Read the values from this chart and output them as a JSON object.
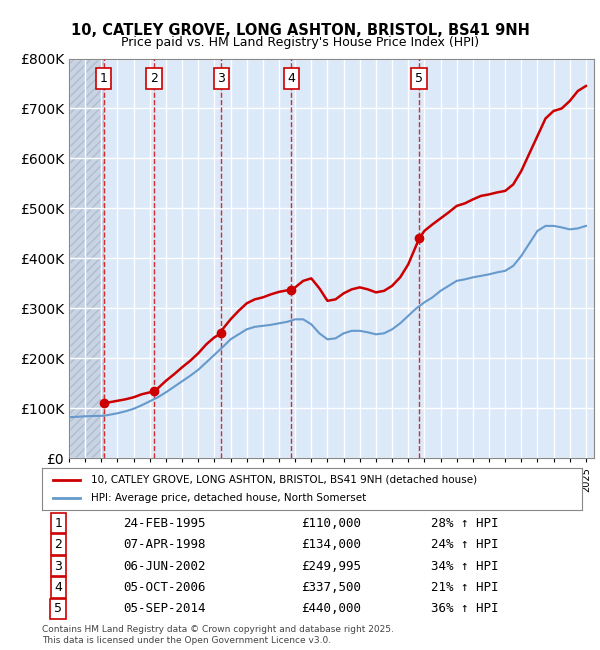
{
  "title": "10, CATLEY GROVE, LONG ASHTON, BRISTOL, BS41 9NH",
  "subtitle": "Price paid vs. HM Land Registry's House Price Index (HPI)",
  "ylabel": "",
  "ylim": [
    0,
    800000
  ],
  "yticks": [
    0,
    100000,
    200000,
    300000,
    400000,
    500000,
    600000,
    700000,
    800000
  ],
  "ytick_labels": [
    "£0",
    "£100K",
    "£200K",
    "£300K",
    "£400K",
    "£500K",
    "£600K",
    "£700K",
    "£800K"
  ],
  "xlim_start": 1993.0,
  "xlim_end": 2025.5,
  "hatch_end": 1995.15,
  "background_color": "#dce9f8",
  "hatch_color": "#c0c8d8",
  "grid_color": "#ffffff",
  "transactions": [
    {
      "num": 1,
      "date": "24-FEB-1995",
      "year": 1995.14,
      "price": 110000,
      "pct": "28%",
      "label": "24-FEB-1995",
      "price_str": "£110,000"
    },
    {
      "num": 2,
      "date": "07-APR-1998",
      "year": 1998.27,
      "price": 134000,
      "pct": "24%",
      "label": "07-APR-1998",
      "price_str": "£134,000"
    },
    {
      "num": 3,
      "date": "06-JUN-2002",
      "year": 2002.43,
      "price": 249995,
      "pct": "34%",
      "label": "06-JUN-2002",
      "price_str": "£249,995"
    },
    {
      "num": 4,
      "date": "05-OCT-2006",
      "year": 2006.76,
      "price": 337500,
      "pct": "21%",
      "label": "05-OCT-2006",
      "price_str": "£337,500"
    },
    {
      "num": 5,
      "date": "05-SEP-2014",
      "year": 2014.68,
      "price": 440000,
      "pct": "36%",
      "label": "05-SEP-2014",
      "price_str": "£440,000"
    }
  ],
  "price_line_color": "#cc0000",
  "hpi_line_color": "#6699cc",
  "legend_label_price": "10, CATLEY GROVE, LONG ASHTON, BRISTOL, BS41 9NH (detached house)",
  "legend_label_hpi": "HPI: Average price, detached house, North Somerset",
  "footer": "Contains HM Land Registry data © Crown copyright and database right 2025.\nThis data is licensed under the Open Government Licence v3.0.",
  "price_data_x": [
    1995.14,
    1995.5,
    1996.0,
    1996.5,
    1997.0,
    1997.5,
    1998.27,
    1998.5,
    1999.0,
    1999.5,
    2000.0,
    2000.5,
    2001.0,
    2001.5,
    2002.0,
    2002.43,
    2002.5,
    2003.0,
    2003.5,
    2004.0,
    2004.5,
    2005.0,
    2005.5,
    2006.0,
    2006.5,
    2006.76,
    2007.0,
    2007.5,
    2008.0,
    2008.5,
    2009.0,
    2009.5,
    2010.0,
    2010.5,
    2011.0,
    2011.5,
    2012.0,
    2012.5,
    2013.0,
    2013.5,
    2014.0,
    2014.68,
    2015.0,
    2015.5,
    2016.0,
    2016.5,
    2017.0,
    2017.5,
    2018.0,
    2018.5,
    2019.0,
    2019.5,
    2020.0,
    2020.5,
    2021.0,
    2021.5,
    2022.0,
    2022.5,
    2023.0,
    2023.5,
    2024.0,
    2024.5,
    2025.0
  ],
  "price_data_y": [
    110000,
    112000,
    115000,
    118000,
    122000,
    128000,
    134000,
    140000,
    155000,
    168000,
    182000,
    195000,
    210000,
    228000,
    242000,
    249995,
    258000,
    278000,
    295000,
    310000,
    318000,
    322000,
    328000,
    333000,
    336000,
    337500,
    342000,
    355000,
    360000,
    340000,
    315000,
    318000,
    330000,
    338000,
    342000,
    338000,
    332000,
    335000,
    345000,
    362000,
    388000,
    440000,
    455000,
    468000,
    480000,
    492000,
    505000,
    510000,
    518000,
    525000,
    528000,
    532000,
    535000,
    548000,
    575000,
    610000,
    645000,
    680000,
    695000,
    700000,
    715000,
    735000,
    745000
  ],
  "hpi_data_x": [
    1993.0,
    1993.5,
    1994.0,
    1994.5,
    1995.14,
    1995.5,
    1996.0,
    1996.5,
    1997.0,
    1997.5,
    1998.0,
    1998.5,
    1999.0,
    1999.5,
    2000.0,
    2000.5,
    2001.0,
    2001.5,
    2002.0,
    2002.5,
    2003.0,
    2003.5,
    2004.0,
    2004.5,
    2005.0,
    2005.5,
    2006.0,
    2006.5,
    2007.0,
    2007.5,
    2008.0,
    2008.5,
    2009.0,
    2009.5,
    2010.0,
    2010.5,
    2011.0,
    2011.5,
    2012.0,
    2012.5,
    2013.0,
    2013.5,
    2014.0,
    2014.5,
    2015.0,
    2015.5,
    2016.0,
    2016.5,
    2017.0,
    2017.5,
    2018.0,
    2018.5,
    2019.0,
    2019.5,
    2020.0,
    2020.5,
    2021.0,
    2021.5,
    2022.0,
    2022.5,
    2023.0,
    2023.5,
    2024.0,
    2024.5,
    2025.0
  ],
  "hpi_data_y": [
    82000,
    83000,
    84000,
    84500,
    85000,
    87000,
    90000,
    94000,
    99000,
    106000,
    114000,
    122000,
    132000,
    143000,
    154000,
    165000,
    177000,
    192000,
    207000,
    222000,
    238000,
    248000,
    258000,
    263000,
    265000,
    267000,
    270000,
    273000,
    278000,
    278000,
    268000,
    250000,
    238000,
    240000,
    250000,
    255000,
    255000,
    252000,
    248000,
    250000,
    258000,
    270000,
    285000,
    300000,
    312000,
    322000,
    335000,
    345000,
    355000,
    358000,
    362000,
    365000,
    368000,
    372000,
    375000,
    385000,
    405000,
    430000,
    455000,
    465000,
    465000,
    462000,
    458000,
    460000,
    465000
  ]
}
